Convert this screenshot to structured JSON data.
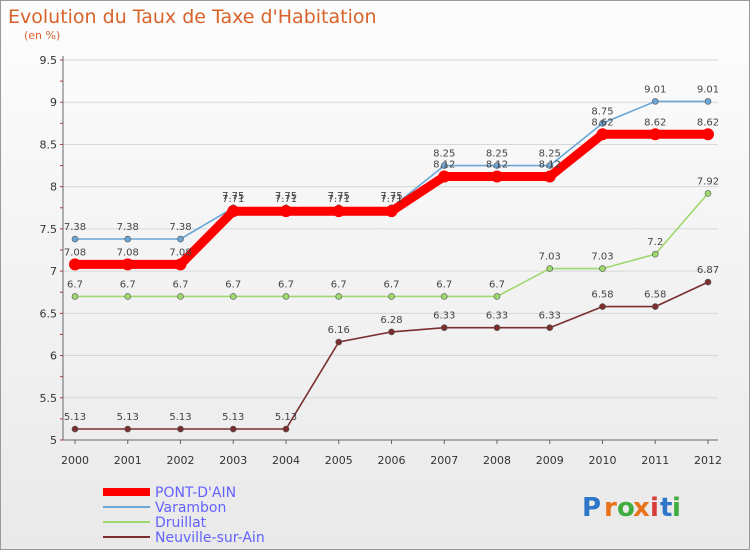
{
  "chart_data": {
    "type": "line",
    "title": "Evolution du Taux de Taxe d'Habitation",
    "subtitle": "(en %)",
    "xlabel": "",
    "ylabel": "",
    "x": [
      "2000",
      "2001",
      "2002",
      "2003",
      "2004",
      "2005",
      "2006",
      "2007",
      "2008",
      "2009",
      "2010",
      "2011",
      "2012"
    ],
    "ylim": [
      5,
      9.5
    ],
    "yticks": [
      "5",
      "5.5",
      "6",
      "6.5",
      "7",
      "7.5",
      "8",
      "8.5",
      "9",
      "9.5"
    ],
    "grid": "horizontal",
    "legend_position": "bottom-left",
    "series": [
      {
        "name": "PONT-D'AIN",
        "color": "#ff0000",
        "label_color": "#6262ff",
        "values": [
          7.08,
          7.08,
          7.08,
          7.71,
          7.71,
          7.71,
          7.71,
          8.12,
          8.12,
          8.12,
          8.62,
          8.62,
          8.62
        ],
        "labels": [
          "7.08",
          "7.08",
          "7.08",
          "7.71",
          "7.71",
          "7.71",
          "7.71",
          "8.12",
          "8.12",
          "8.12",
          "8.62",
          "8.62",
          "8.62"
        ]
      },
      {
        "name": "Varambon",
        "color": "#6aa6d8",
        "label_color": "#6262ff",
        "values": [
          7.38,
          7.38,
          7.38,
          7.75,
          7.75,
          7.75,
          7.75,
          8.25,
          8.25,
          8.25,
          8.75,
          9.01,
          9.01
        ],
        "labels": [
          "7.38",
          "7.38",
          "7.38",
          "7.75",
          "7.75",
          "7.75",
          "7.75",
          "8.25",
          "8.25",
          "8.25",
          "8.75",
          "9.01",
          "9.01"
        ]
      },
      {
        "name": "Druillat",
        "color": "#9fd86e",
        "label_color": "#6262ff",
        "values": [
          6.7,
          6.7,
          6.7,
          6.7,
          6.7,
          6.7,
          6.7,
          6.7,
          6.7,
          7.03,
          7.03,
          7.2,
          7.92
        ],
        "labels": [
          "6.7",
          "6.7",
          "6.7",
          "6.7",
          "6.7",
          "6.7",
          "6.7",
          "6.7",
          "6.7",
          "7.03",
          "7.03",
          "7.2",
          "7.92"
        ]
      },
      {
        "name": "Neuville-sur-Ain",
        "color": "#7a2e2e",
        "label_color": "#6262ff",
        "values": [
          5.13,
          5.13,
          5.13,
          5.13,
          5.13,
          6.16,
          6.28,
          6.33,
          6.33,
          6.33,
          6.58,
          6.58,
          6.87
        ],
        "labels": [
          "5.13",
          "5.13",
          "5.13",
          "5.13",
          "5.13",
          "6.16",
          "6.28",
          "6.33",
          "6.33",
          "6.33",
          "6.58",
          "6.58",
          "6.87"
        ]
      }
    ]
  },
  "logo": {
    "text": "Proxiti",
    "letters": [
      "P",
      "r",
      "o",
      "x",
      "i",
      "t",
      "i"
    ],
    "colors": [
      "#2e77c8",
      "#e8731a",
      "#3fae3f",
      "#e8731a",
      "#d93a3a",
      "#2e77c8",
      "#3fae3f"
    ]
  }
}
